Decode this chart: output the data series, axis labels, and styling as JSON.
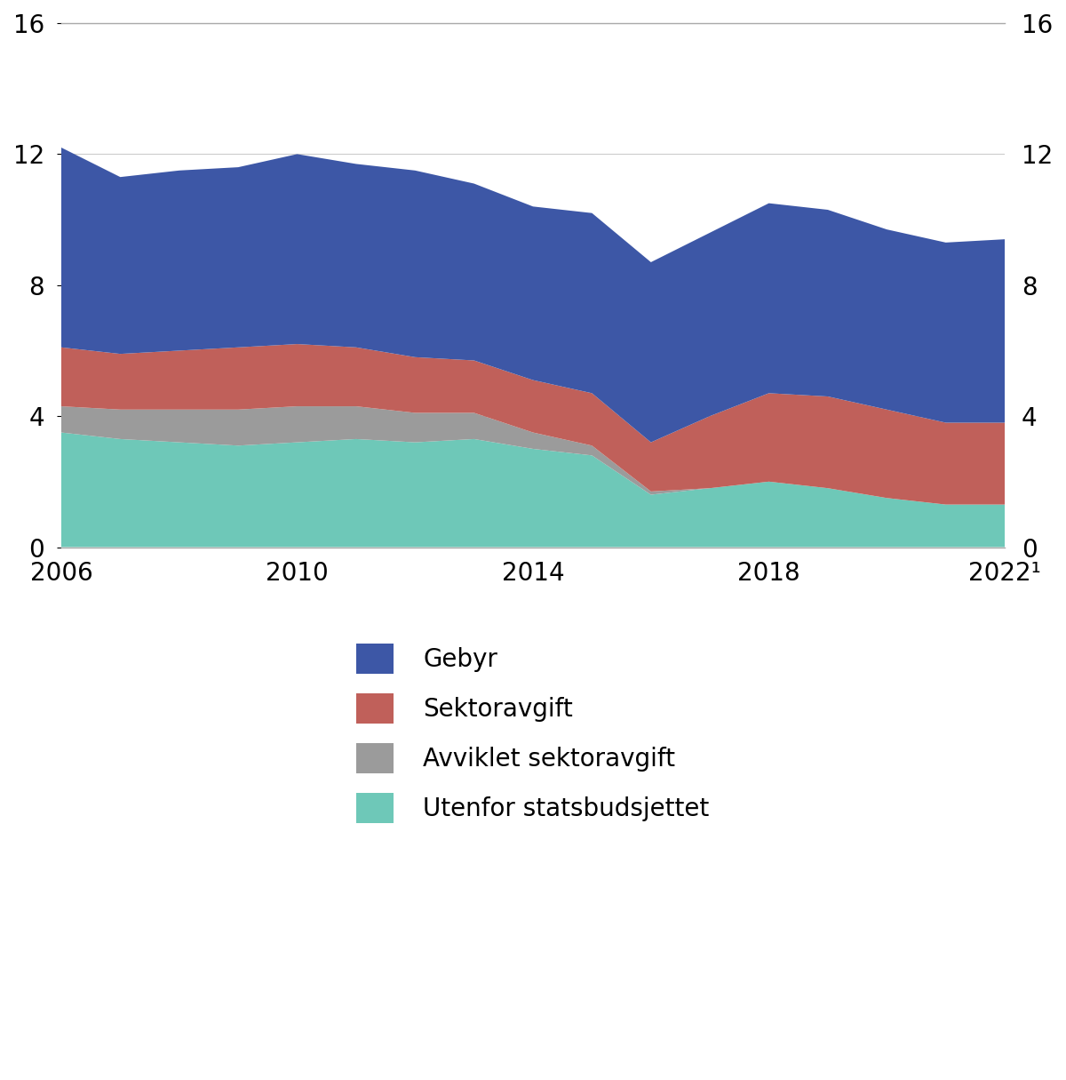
{
  "years": [
    2006,
    2007,
    2008,
    2009,
    2010,
    2011,
    2012,
    2013,
    2014,
    2015,
    2016,
    2017,
    2018,
    2019,
    2020,
    2021,
    2022
  ],
  "utenfor_statsbudsjettet": [
    3.5,
    3.3,
    3.2,
    3.1,
    3.2,
    3.3,
    3.2,
    3.3,
    3.0,
    2.8,
    1.6,
    1.8,
    2.0,
    1.8,
    1.5,
    1.3,
    1.3
  ],
  "avviklet_sektoravgift": [
    0.8,
    0.9,
    1.0,
    1.1,
    1.1,
    1.0,
    0.9,
    0.8,
    0.5,
    0.3,
    0.1,
    0.0,
    0.0,
    0.0,
    0.0,
    0.0,
    0.0
  ],
  "sektoravgift": [
    1.8,
    1.7,
    1.8,
    1.9,
    1.9,
    1.8,
    1.7,
    1.6,
    1.6,
    1.6,
    1.5,
    2.2,
    2.7,
    2.8,
    2.7,
    2.5,
    2.5
  ],
  "gebyr": [
    6.1,
    5.4,
    5.5,
    5.5,
    5.8,
    5.6,
    5.7,
    5.4,
    5.3,
    5.5,
    5.5,
    5.6,
    5.8,
    5.7,
    5.5,
    5.5,
    5.6
  ],
  "color_utenfor": "#6ec8b8",
  "color_avviklet": "#9b9b9b",
  "color_sektor": "#c0605a",
  "color_gebyr": "#3d57a6",
  "ylim": [
    0,
    16
  ],
  "yticks": [
    0,
    4,
    8,
    12,
    16
  ],
  "xtick_labels": [
    "2006",
    "2010",
    "2014",
    "2018",
    "2022¹"
  ],
  "xtick_positions": [
    2006,
    2010,
    2014,
    2018,
    2022
  ],
  "legend_labels": [
    "Gebyr",
    "Sektoravgift",
    "Avviklet sektoravgift",
    "Utenfor statsbudsjettet"
  ],
  "legend_colors": [
    "#3d57a6",
    "#c0605a",
    "#9b9b9b",
    "#6ec8b8"
  ],
  "background_color": "#ffffff",
  "font_size_ticks": 20,
  "font_size_legend": 20
}
